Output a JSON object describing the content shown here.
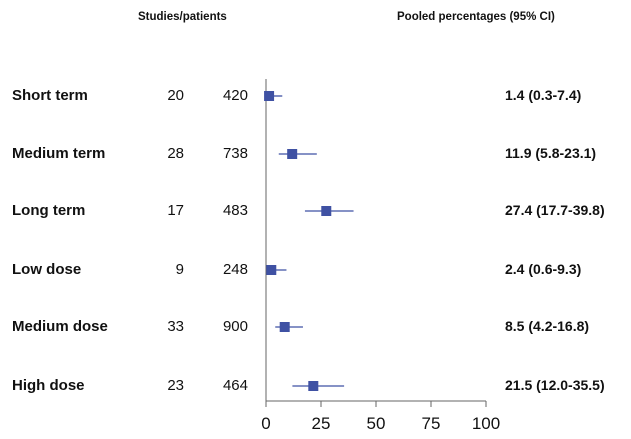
{
  "headers": {
    "studies_patients": "Studies/patients",
    "pooled": "Pooled percentages (95% CI)"
  },
  "rows": [
    {
      "label": "Short term",
      "studies": "20",
      "patients": "420",
      "estimate_text": "1.4 (0.3-7.4)"
    },
    {
      "label": "Medium term",
      "studies": "28",
      "patients": "738",
      "estimate_text": "11.9 (5.8-23.1)"
    },
    {
      "label": "Long term",
      "studies": "17",
      "patients": "483",
      "estimate_text": "27.4 (17.7-39.8)"
    },
    {
      "label": "Low dose",
      "studies": "9",
      "patients": "248",
      "estimate_text": "2.4 (0.6-9.3)"
    },
    {
      "label": "Medium dose",
      "studies": "33",
      "patients": "900",
      "estimate_text": "8.5 (4.2-16.8)"
    },
    {
      "label": "High dose",
      "studies": "23",
      "patients": "464",
      "estimate_text": "21.5 (12.0-35.5)"
    }
  ],
  "colors": {
    "marker": "#3f51a3",
    "axis": "#666666"
  },
  "chart_data": {
    "type": "forest",
    "categories": [
      "Short term",
      "Medium term",
      "Long term",
      "Low dose",
      "Medium dose",
      "High dose"
    ],
    "values": [
      1.4,
      11.9,
      27.4,
      2.4,
      8.5,
      21.5
    ],
    "ci_low": [
      0.3,
      5.8,
      17.7,
      0.6,
      4.2,
      12.0
    ],
    "ci_high": [
      7.4,
      23.1,
      39.8,
      9.3,
      16.8,
      35.5
    ],
    "xlim": [
      0,
      100
    ],
    "xticks": [
      "0",
      "25",
      "50",
      "75",
      "100"
    ],
    "grid": false
  }
}
